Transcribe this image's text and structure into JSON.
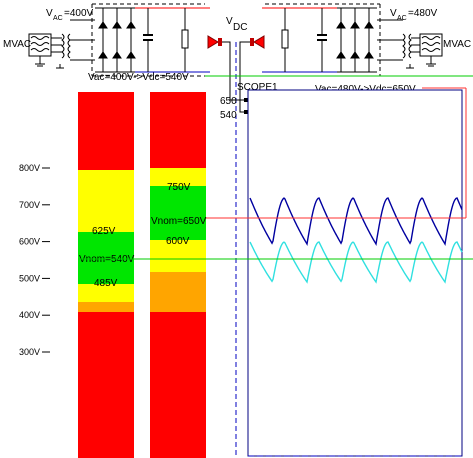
{
  "left_source": {
    "v_prefix": "V",
    "v_subscript": "AC",
    "v_value": "=400V",
    "block_label": "MVAC"
  },
  "right_source": {
    "v_prefix": "V",
    "v_subscript": "AC",
    "v_value": "=480V",
    "block_label": "MVAC"
  },
  "dc_link": {
    "v_prefix": "V",
    "v_subscript": "DC"
  },
  "left_legend": "Vac=400V->Vdc=540V",
  "right_legend": "Vac=480V->Vdc=650V",
  "scope": {
    "title": "SCOPE1",
    "input_labels": [
      "650",
      "540"
    ]
  },
  "scale": {
    "tick_labels": [
      "800V",
      "700V",
      "600V",
      "500V",
      "400V",
      "300V"
    ],
    "tick_values": [
      800,
      700,
      600,
      500,
      400,
      300
    ]
  },
  "bars": [
    {
      "name": "left",
      "labels": [
        {
          "text": "625V",
          "value": 625
        },
        {
          "text": "Vnom=540V",
          "value": 540
        },
        {
          "text": "485V",
          "value": 485
        }
      ]
    },
    {
      "name": "right",
      "labels": [
        {
          "text": "750V",
          "value": 750
        },
        {
          "text": "Vnom=650V",
          "value": 650
        },
        {
          "text": "600V",
          "value": 600
        }
      ]
    }
  ],
  "colors": {
    "red": "#ff0000",
    "yellow": "#ffff00",
    "green": "#00e600",
    "orange": "#ffa500",
    "dark_blue": "#0000a0",
    "cyan": "#30e0e0",
    "legend_red": "#ff3030",
    "legend_green": "#00cc00"
  }
}
